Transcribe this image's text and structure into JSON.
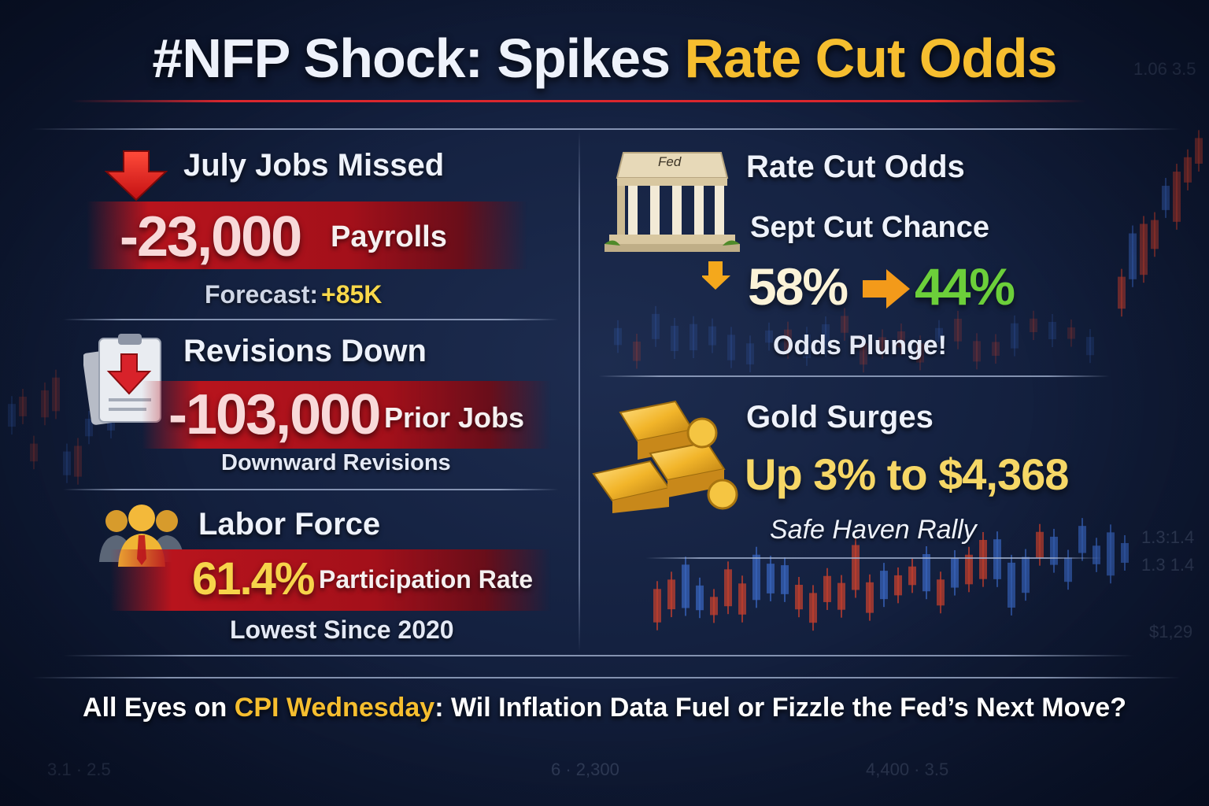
{
  "title": {
    "part_white": "#NFP Shock: Spikes ",
    "part_gold": "Rate Cut Odds"
  },
  "jobs": {
    "heading": "July Jobs Missed",
    "value": "-23,000",
    "unit": "Payrolls",
    "forecast_label": "Forecast:",
    "forecast_value": "+85K"
  },
  "revisions": {
    "heading": "Revisions Down",
    "value": "-103,000",
    "unit": "Prior Jobs",
    "note": "Downward Revisions"
  },
  "labor": {
    "heading": "Labor Force",
    "value": "61.4%",
    "unit": "Participation Rate",
    "note": "Lowest Since 2020"
  },
  "rate_cut": {
    "heading": "Rate Cut Odds",
    "fed_sign": "Fed",
    "subheading": "Sept Cut Chance",
    "from_value": "58%",
    "to_value": "44%",
    "note": "Odds Plunge!"
  },
  "gold": {
    "heading": "Gold Surges",
    "value": "Up 3% to $4,368",
    "note": "Safe Haven Rally"
  },
  "bottom": {
    "prefix": "All Eyes on ",
    "highlight": "CPI Wednesday",
    "suffix": ": Wil Inflation Data Fuel or Fizzle the Fed’s Next Move?"
  },
  "icons": {
    "jobs": "down-arrow-icon",
    "revisions": "document-down-arrow-icon",
    "labor": "people-group-icon",
    "rate_cut": "fed-building-icon",
    "odds_change": "swap-arrow-icon",
    "gold": "gold-bars-icon"
  },
  "colors": {
    "background": "#142140",
    "accent_red": "#d9272e",
    "accent_gold": "#f6be2f",
    "increase_green": "#6ccf3a",
    "band_red": "#b8141d"
  }
}
